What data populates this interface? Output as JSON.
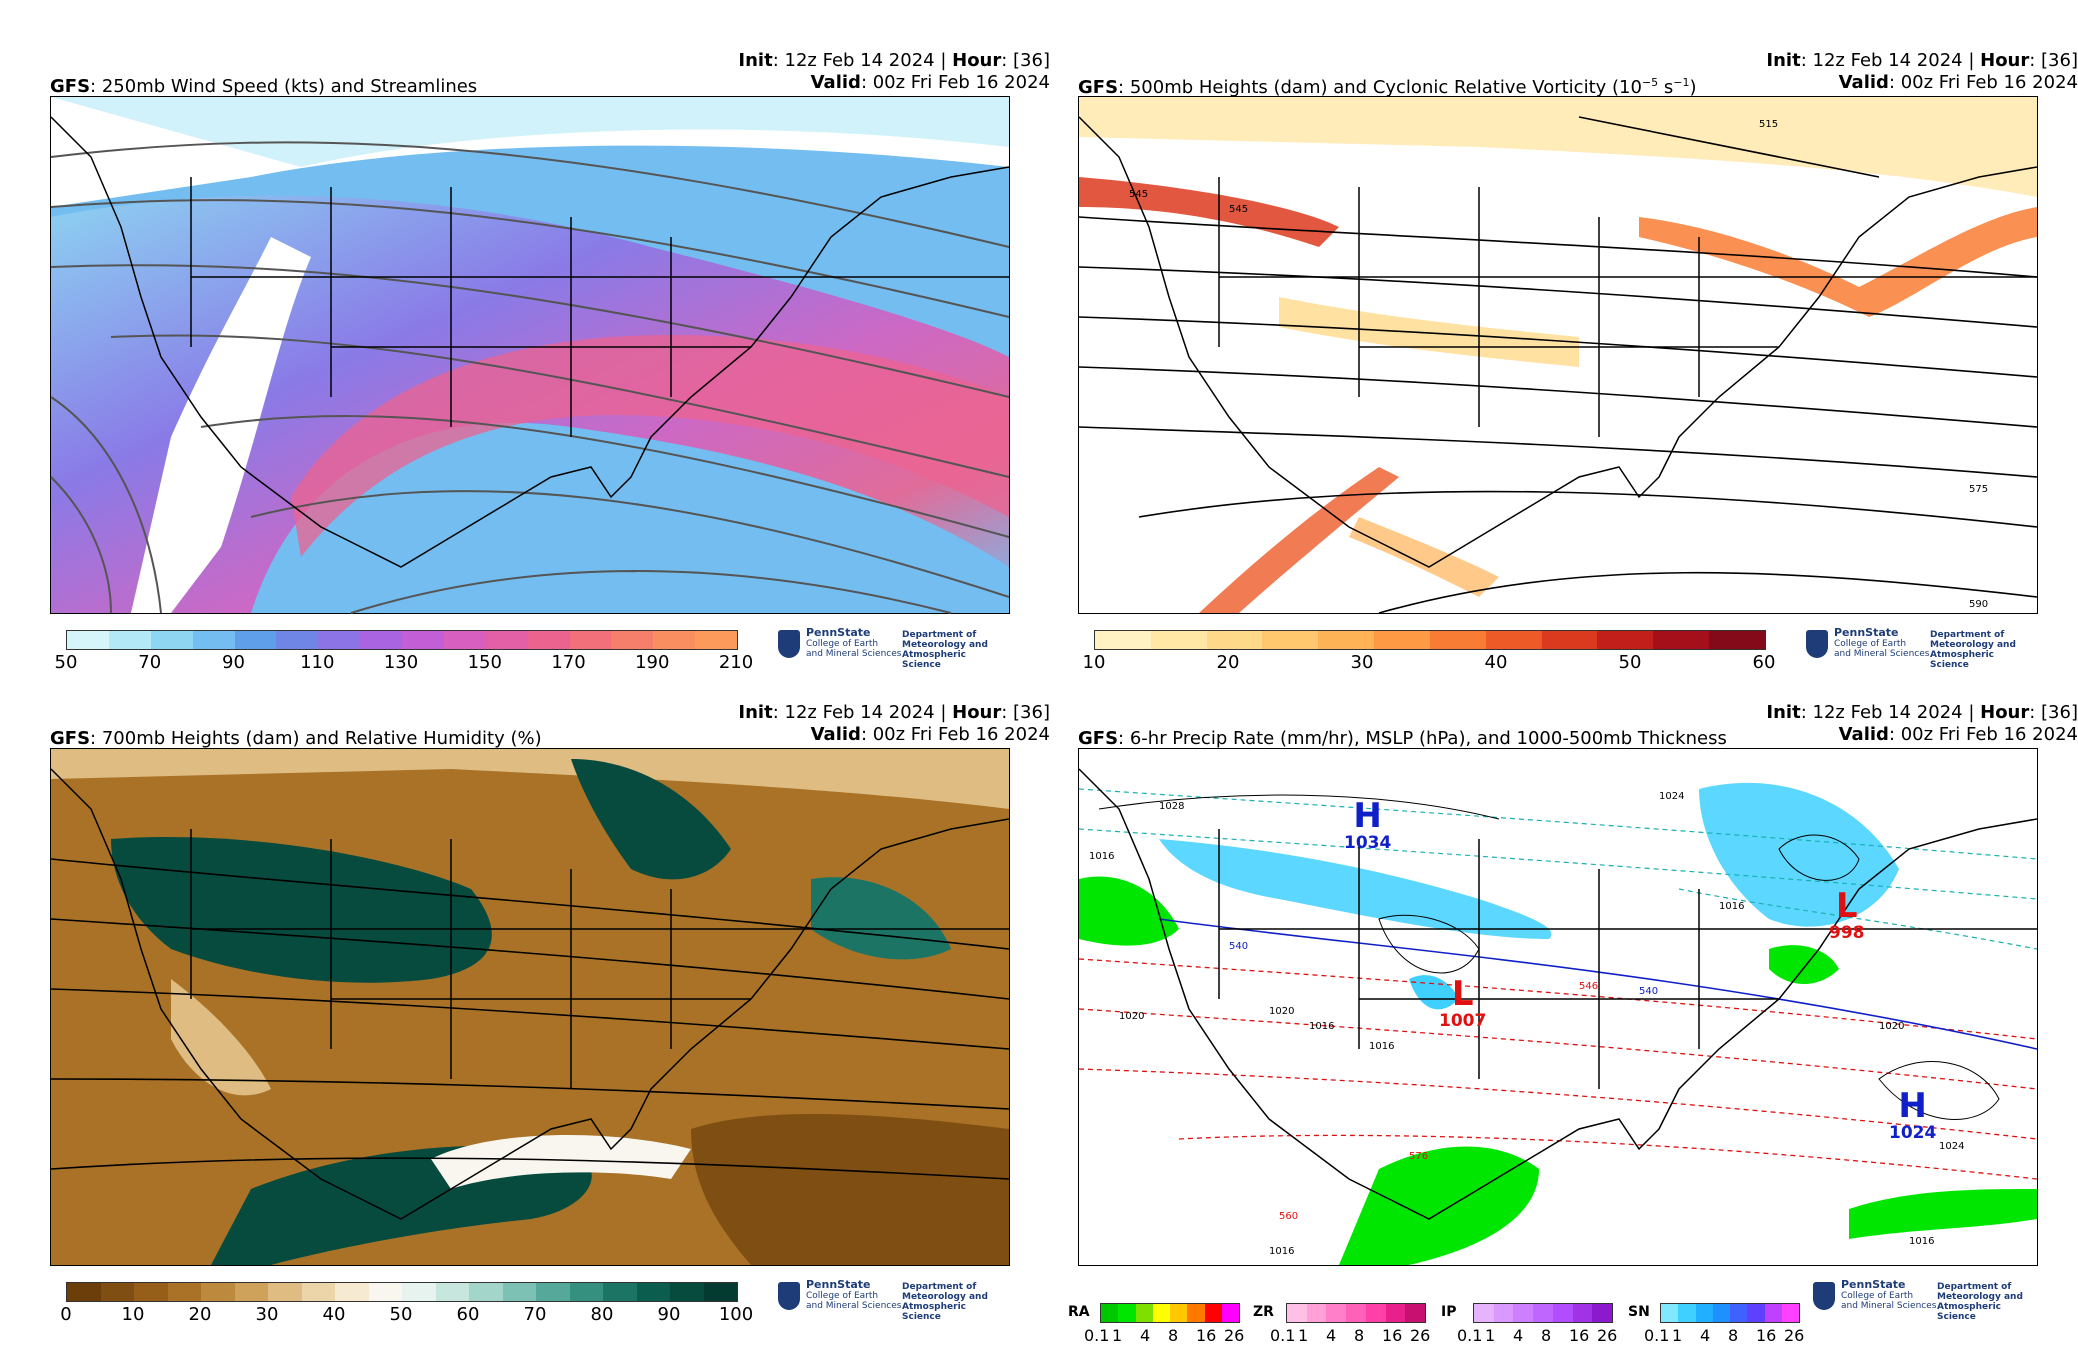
{
  "panels": [
    {
      "model": "GFS",
      "title": ": 250mb Wind Speed (kts) and Streamlines",
      "init_label": "Init",
      "init_value": ": 12z Feb 14 2024 | ",
      "hour_label": "Hour",
      "hour_value": ": [36]",
      "valid_label": "Valid",
      "valid_value": ": 00z Fri Feb 16 2024",
      "colorbar_ticks": [
        "50",
        "70",
        "90",
        "110",
        "130",
        "150",
        "170",
        "190",
        "210"
      ],
      "colorbar_colors": [
        "#d6f5fb",
        "#b3e9f7",
        "#8fd6f2",
        "#74bdf0",
        "#5f9ee9",
        "#6f86e6",
        "#8c73e6",
        "#a964e2",
        "#c35fd6",
        "#d65fc0",
        "#e35fa6",
        "#ec6390",
        "#f2707a",
        "#f57f6a",
        "#f98e60",
        "#fb9a5a"
      ]
    },
    {
      "model": "GFS",
      "title": ": 500mb Heights (dam) and Cyclonic Relative Vorticity (10",
      "title_sup1": "−5",
      "title_mid": " s",
      "title_sup2": "−1",
      "title_end": ")",
      "init_label": "Init",
      "init_value": ": 12z Feb 14 2024 | ",
      "hour_label": "Hour",
      "hour_value": ": [36]",
      "valid_label": "Valid",
      "valid_value": ": 00z Fri Feb 16 2024",
      "colorbar_ticks": [
        "10",
        "20",
        "30",
        "40",
        "50",
        "60"
      ],
      "colorbar_colors": [
        "#fff3c4",
        "#ffe7a6",
        "#ffd98a",
        "#ffc86e",
        "#ffb357",
        "#ff9a44",
        "#f97c34",
        "#ee5a27",
        "#dc3a1f",
        "#c31f1a",
        "#a50f1a",
        "#840a1a"
      ],
      "contour_labels": [
        "545",
        "545",
        "515",
        "575",
        "590"
      ]
    },
    {
      "model": "GFS",
      "title": ": 700mb Heights (dam) and Relative Humidity (%)",
      "init_label": "Init",
      "init_value": ": 12z Feb 14 2024 | ",
      "hour_label": "Hour",
      "hour_value": ": [36]",
      "valid_label": "Valid",
      "valid_value": ": 00z Fri Feb 16 2024",
      "colorbar_ticks": [
        "0",
        "10",
        "20",
        "30",
        "40",
        "50",
        "60",
        "70",
        "80",
        "90",
        "100"
      ],
      "colorbar_colors": [
        "#6b3e0a",
        "#7f4e12",
        "#955f1a",
        "#a97227",
        "#bd8a3d",
        "#cfa25c",
        "#dfbc82",
        "#ecd5a8",
        "#f6ead2",
        "#f8f6ee",
        "#e6f3ef",
        "#c6e6de",
        "#a3d5ca",
        "#7cc1b3",
        "#56a99a",
        "#35907f",
        "#1c7564",
        "#0b5e4e",
        "#064b3d",
        "#033b30"
      ]
    },
    {
      "model": "GFS",
      "title": ": 6-hr Precip Rate (mm/hr), MSLP (hPa), and 1000-500mb Thickness",
      "init_label": "Init",
      "init_value": ": 12z Feb 14 2024 | ",
      "hour_label": "Hour",
      "hour_value": ": [36]",
      "valid_label": "Valid",
      "valid_value": ": 00z Fri Feb 16 2024",
      "precip_types": [
        {
          "label": "RA",
          "colors": [
            "#00c800",
            "#00e600",
            "#7fe000",
            "#ffff00",
            "#ffc800",
            "#ff7800",
            "#ff0000",
            "#ff00ff"
          ]
        },
        {
          "label": "ZR",
          "colors": [
            "#ffc0e6",
            "#ffa0d8",
            "#ff80c8",
            "#ff60b8",
            "#ff40a8",
            "#e8208c",
            "#c8106e"
          ]
        },
        {
          "label": "IP",
          "colors": [
            "#e6b3ff",
            "#d999ff",
            "#cc80ff",
            "#bf66ff",
            "#b24cff",
            "#a033e6",
            "#8a1acc"
          ]
        },
        {
          "label": "SN",
          "colors": [
            "#80e8ff",
            "#40d0ff",
            "#20b0ff",
            "#1e90ff",
            "#4060ff",
            "#6040ff",
            "#c040ff",
            "#ff40ff"
          ]
        }
      ],
      "precip_ticks": [
        "0.1",
        "1",
        "4",
        "8",
        "16",
        "26"
      ],
      "systems": [
        {
          "type": "H",
          "value": "1034",
          "color": "#1020c8"
        },
        {
          "type": "L",
          "value": "998",
          "color": "#e01010"
        },
        {
          "type": "L",
          "value": "1007",
          "color": "#e01010"
        },
        {
          "type": "H",
          "value": "1024",
          "color": "#1020c8"
        }
      ],
      "isobar_labels": [
        "1028",
        "1024",
        "1016",
        "1016",
        "1020",
        "1020",
        "1024",
        "1016",
        "1016",
        "1016",
        "1016",
        "1020"
      ],
      "thickness_labels": [
        "540",
        "546",
        "540",
        "560",
        "576"
      ]
    }
  ],
  "branding": {
    "university": "PennState",
    "college_line1": "College of Earth",
    "college_line2": "and Mineral Sciences",
    "dept_line1": "Department of",
    "dept_line2": "Meteorology and",
    "dept_line3": "Atmospheric Science"
  }
}
